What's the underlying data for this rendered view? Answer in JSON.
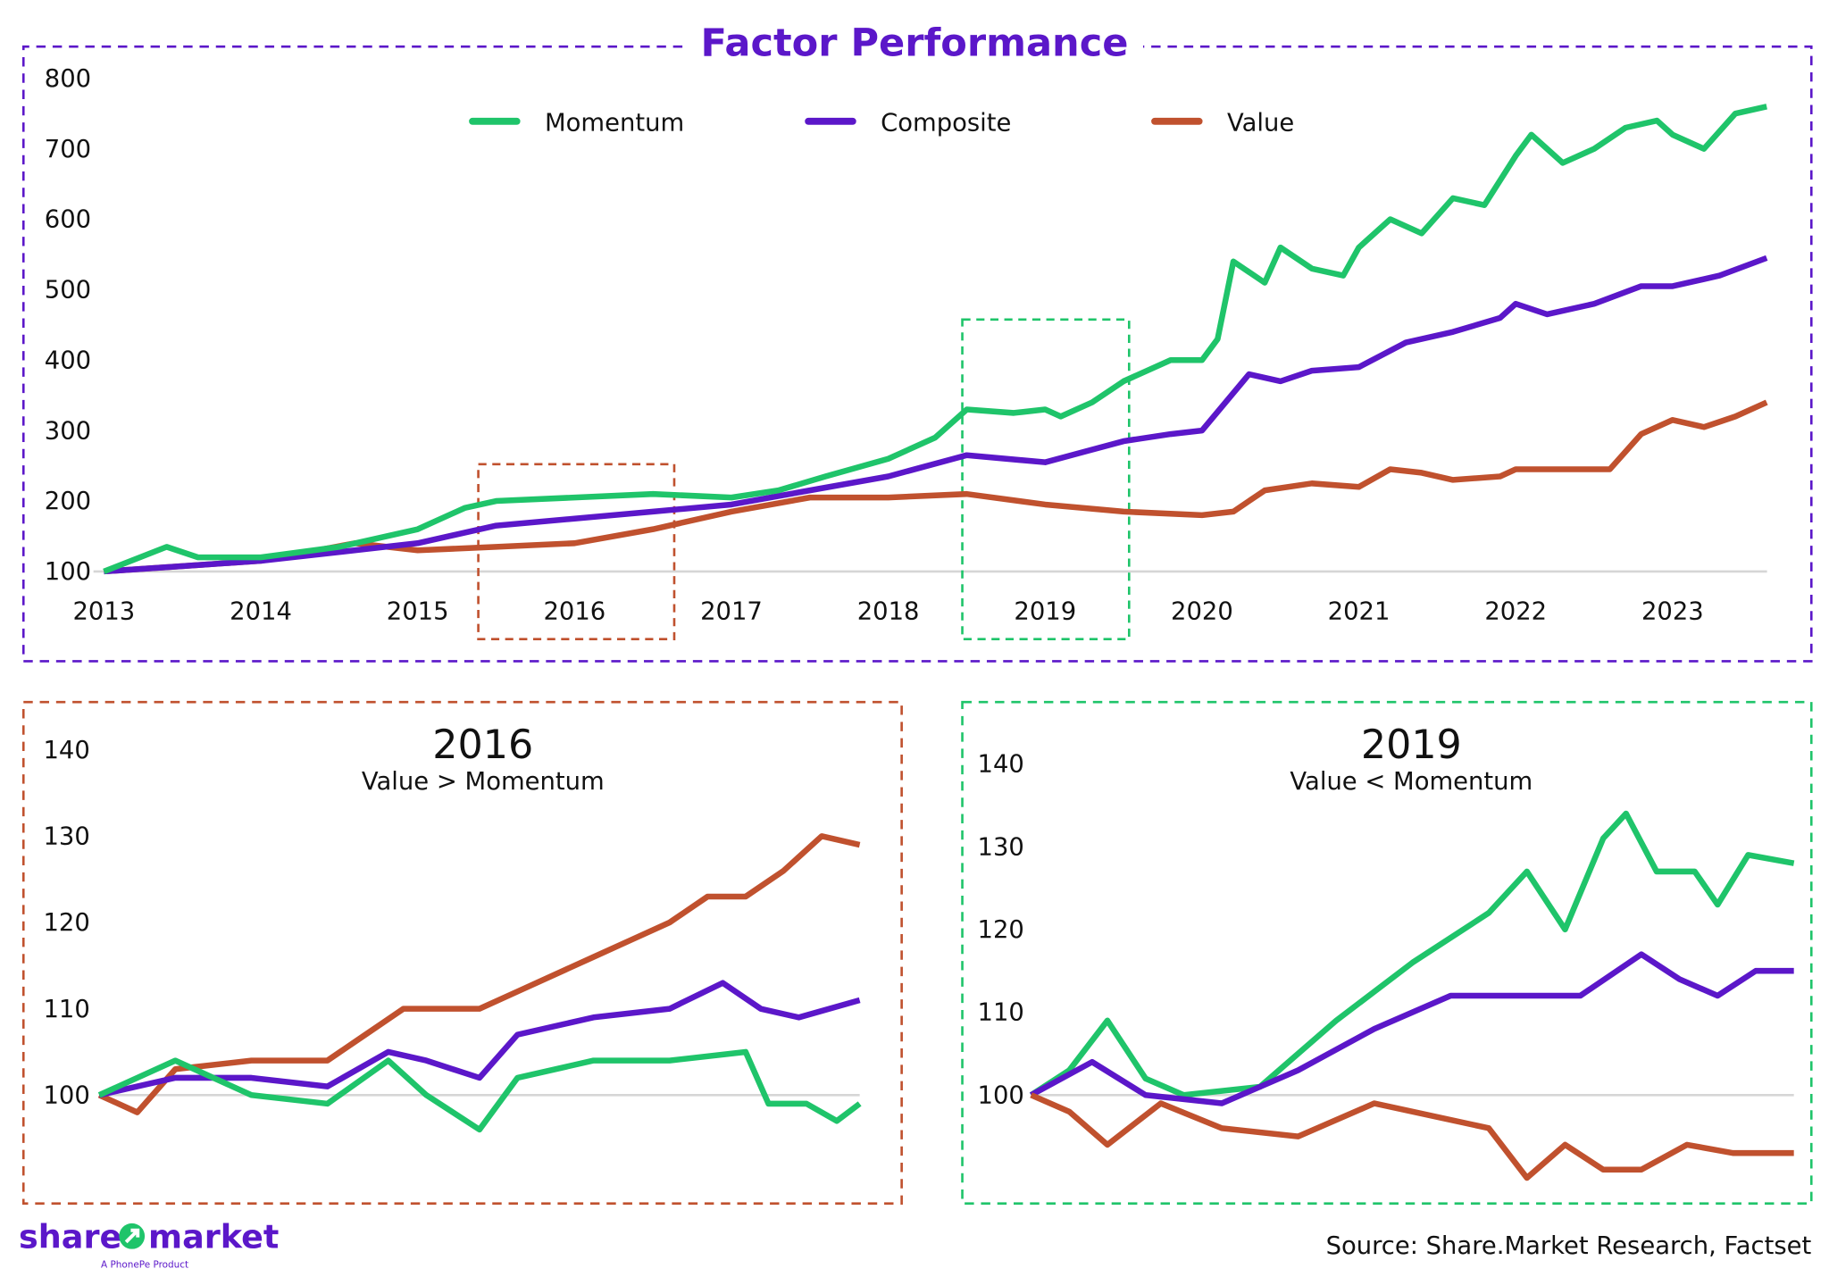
{
  "colors": {
    "momentum": "#1fc46a",
    "composite": "#5b17c9",
    "value": "#c0512e",
    "frame": "#5b17c9",
    "grid": "#d6d6d6"
  },
  "chart_data": [
    {
      "type": "line",
      "title": "Factor Performance",
      "legend_position": "top",
      "ylim": [
        100,
        800
      ],
      "yticks": [
        "100",
        "200",
        "300",
        "400",
        "500",
        "600",
        "700",
        "800"
      ],
      "xticks": [
        "2013",
        "2014",
        "2015",
        "2016",
        "2017",
        "2018",
        "2019",
        "2020",
        "2021",
        "2022",
        "2023"
      ],
      "xlim": [
        2013,
        2023.6
      ],
      "series": [
        {
          "name": "Momentum",
          "color": "#1fc46a",
          "points": [
            [
              2013,
              100
            ],
            [
              2013.4,
              135
            ],
            [
              2013.6,
              120
            ],
            [
              2014,
              120
            ],
            [
              2014.5,
              135
            ],
            [
              2015,
              160
            ],
            [
              2015.3,
              190
            ],
            [
              2015.5,
              200
            ],
            [
              2016,
              205
            ],
            [
              2016.5,
              210
            ],
            [
              2017,
              205
            ],
            [
              2017.3,
              215
            ],
            [
              2017.6,
              235
            ],
            [
              2018,
              260
            ],
            [
              2018.3,
              290
            ],
            [
              2018.5,
              330
            ],
            [
              2018.8,
              325
            ],
            [
              2019,
              330
            ],
            [
              2019.1,
              320
            ],
            [
              2019.3,
              340
            ],
            [
              2019.5,
              370
            ],
            [
              2019.8,
              400
            ],
            [
              2020,
              400
            ],
            [
              2020.1,
              430
            ],
            [
              2020.2,
              540
            ],
            [
              2020.4,
              510
            ],
            [
              2020.5,
              560
            ],
            [
              2020.7,
              530
            ],
            [
              2020.9,
              520
            ],
            [
              2021,
              560
            ],
            [
              2021.2,
              600
            ],
            [
              2021.4,
              580
            ],
            [
              2021.6,
              630
            ],
            [
              2021.8,
              620
            ],
            [
              2022,
              690
            ],
            [
              2022.1,
              720
            ],
            [
              2022.3,
              680
            ],
            [
              2022.5,
              700
            ],
            [
              2022.7,
              730
            ],
            [
              2022.9,
              740
            ],
            [
              2023,
              720
            ],
            [
              2023.2,
              700
            ],
            [
              2023.4,
              750
            ],
            [
              2023.6,
              760
            ]
          ]
        },
        {
          "name": "Composite",
          "color": "#5b17c9",
          "points": [
            [
              2013,
              100
            ],
            [
              2014,
              115
            ],
            [
              2015,
              140
            ],
            [
              2015.5,
              165
            ],
            [
              2016,
              175
            ],
            [
              2016.5,
              185
            ],
            [
              2017,
              195
            ],
            [
              2017.5,
              215
            ],
            [
              2018,
              235
            ],
            [
              2018.5,
              265
            ],
            [
              2019,
              255
            ],
            [
              2019.5,
              285
            ],
            [
              2019.8,
              295
            ],
            [
              2020,
              300
            ],
            [
              2020.3,
              380
            ],
            [
              2020.5,
              370
            ],
            [
              2020.7,
              385
            ],
            [
              2021,
              390
            ],
            [
              2021.3,
              425
            ],
            [
              2021.6,
              440
            ],
            [
              2021.9,
              460
            ],
            [
              2022,
              480
            ],
            [
              2022.2,
              465
            ],
            [
              2022.5,
              480
            ],
            [
              2022.8,
              505
            ],
            [
              2023,
              505
            ],
            [
              2023.3,
              520
            ],
            [
              2023.6,
              545
            ]
          ]
        },
        {
          "name": "Value",
          "color": "#c0512e",
          "points": [
            [
              2013,
              100
            ],
            [
              2014,
              115
            ],
            [
              2014.6,
              140
            ],
            [
              2015,
              130
            ],
            [
              2015.5,
              135
            ],
            [
              2016,
              140
            ],
            [
              2016.5,
              160
            ],
            [
              2017,
              185
            ],
            [
              2017.5,
              205
            ],
            [
              2018,
              205
            ],
            [
              2018.5,
              210
            ],
            [
              2019,
              195
            ],
            [
              2019.5,
              185
            ],
            [
              2020,
              180
            ],
            [
              2020.2,
              185
            ],
            [
              2020.4,
              215
            ],
            [
              2020.7,
              225
            ],
            [
              2021,
              220
            ],
            [
              2021.2,
              245
            ],
            [
              2021.4,
              240
            ],
            [
              2021.6,
              230
            ],
            [
              2021.9,
              235
            ],
            [
              2022,
              245
            ],
            [
              2022.3,
              245
            ],
            [
              2022.6,
              245
            ],
            [
              2022.8,
              295
            ],
            [
              2023,
              315
            ],
            [
              2023.2,
              305
            ],
            [
              2023.4,
              320
            ],
            [
              2023.6,
              340
            ]
          ]
        }
      ],
      "highlights": [
        {
          "year": "2016",
          "color": "#c0512e"
        },
        {
          "year": "2019",
          "color": "#1fc46a"
        }
      ]
    },
    {
      "type": "line",
      "title": "2016",
      "subtitle": "Value > Momentum",
      "ylim": [
        95,
        140
      ],
      "yticks": [
        "100",
        "110",
        "120",
        "130",
        "140"
      ],
      "series": [
        {
          "name": "Value",
          "color": "#c0512e",
          "points": [
            [
              0,
              100
            ],
            [
              0.05,
              98
            ],
            [
              0.1,
              103
            ],
            [
              0.2,
              104
            ],
            [
              0.3,
              104
            ],
            [
              0.35,
              107
            ],
            [
              0.4,
              110
            ],
            [
              0.5,
              110
            ],
            [
              0.55,
              112
            ],
            [
              0.65,
              116
            ],
            [
              0.7,
              118
            ],
            [
              0.75,
              120
            ],
            [
              0.8,
              123
            ],
            [
              0.85,
              123
            ],
            [
              0.9,
              126
            ],
            [
              0.95,
              130
            ],
            [
              1,
              129
            ]
          ]
        },
        {
          "name": "Composite",
          "color": "#5b17c9",
          "points": [
            [
              0,
              100
            ],
            [
              0.05,
              101
            ],
            [
              0.1,
              102
            ],
            [
              0.2,
              102
            ],
            [
              0.3,
              101
            ],
            [
              0.38,
              105
            ],
            [
              0.43,
              104
            ],
            [
              0.5,
              102
            ],
            [
              0.55,
              107
            ],
            [
              0.65,
              109
            ],
            [
              0.75,
              110
            ],
            [
              0.82,
              113
            ],
            [
              0.87,
              110
            ],
            [
              0.92,
              109
            ],
            [
              1,
              111
            ]
          ]
        },
        {
          "name": "Momentum",
          "color": "#1fc46a",
          "points": [
            [
              0,
              100
            ],
            [
              0.05,
              102
            ],
            [
              0.1,
              104
            ],
            [
              0.2,
              100
            ],
            [
              0.3,
              99
            ],
            [
              0.38,
              104
            ],
            [
              0.43,
              100
            ],
            [
              0.5,
              96
            ],
            [
              0.55,
              102
            ],
            [
              0.65,
              104
            ],
            [
              0.75,
              104
            ],
            [
              0.85,
              105
            ],
            [
              0.88,
              99
            ],
            [
              0.93,
              99
            ],
            [
              0.97,
              97
            ],
            [
              1,
              99
            ]
          ]
        }
      ]
    },
    {
      "type": "line",
      "title": "2019",
      "subtitle": "Value < Momentum",
      "ylim": [
        88,
        140
      ],
      "yticks": [
        "100",
        "110",
        "120",
        "130",
        "140"
      ],
      "series": [
        {
          "name": "Momentum",
          "color": "#1fc46a",
          "points": [
            [
              0,
              100
            ],
            [
              0.05,
              103
            ],
            [
              0.1,
              109
            ],
            [
              0.15,
              102
            ],
            [
              0.2,
              100
            ],
            [
              0.3,
              101
            ],
            [
              0.4,
              109
            ],
            [
              0.5,
              116
            ],
            [
              0.6,
              122
            ],
            [
              0.65,
              127
            ],
            [
              0.7,
              120
            ],
            [
              0.75,
              131
            ],
            [
              0.78,
              134
            ],
            [
              0.82,
              127
            ],
            [
              0.87,
              127
            ],
            [
              0.9,
              123
            ],
            [
              0.94,
              129
            ],
            [
              1,
              128
            ]
          ]
        },
        {
          "name": "Composite",
          "color": "#5b17c9",
          "points": [
            [
              0,
              100
            ],
            [
              0.08,
              104
            ],
            [
              0.15,
              100
            ],
            [
              0.25,
              99
            ],
            [
              0.35,
              103
            ],
            [
              0.45,
              108
            ],
            [
              0.55,
              112
            ],
            [
              0.65,
              112
            ],
            [
              0.72,
              112
            ],
            [
              0.8,
              117
            ],
            [
              0.85,
              114
            ],
            [
              0.9,
              112
            ],
            [
              0.95,
              115
            ],
            [
              1,
              115
            ]
          ]
        },
        {
          "name": "Value",
          "color": "#c0512e",
          "points": [
            [
              0,
              100
            ],
            [
              0.05,
              98
            ],
            [
              0.1,
              94
            ],
            [
              0.17,
              99
            ],
            [
              0.25,
              96
            ],
            [
              0.35,
              95
            ],
            [
              0.45,
              99
            ],
            [
              0.5,
              98
            ],
            [
              0.6,
              96
            ],
            [
              0.65,
              90
            ],
            [
              0.7,
              94
            ],
            [
              0.75,
              91
            ],
            [
              0.8,
              91
            ],
            [
              0.86,
              94
            ],
            [
              0.92,
              93
            ],
            [
              1,
              93
            ]
          ]
        }
      ]
    }
  ],
  "footer": {
    "source": "Source: Share.Market Research, Factset",
    "logo_text": "share market",
    "logo_sub": "A PhonePe Product"
  }
}
